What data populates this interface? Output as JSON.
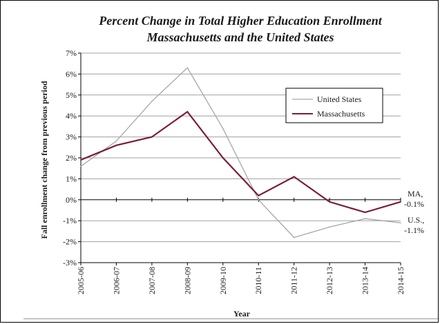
{
  "chart_data": {
    "type": "line",
    "title": "Percent Change in Total Higher Education Enrollment",
    "subtitle": "Massachusetts and the United States",
    "xlabel": "Year",
    "ylabel": "Fall enrollment change from previous period",
    "categories": [
      "2005-06",
      "2006-07",
      "2007-08",
      "2008-09",
      "2009-10",
      "2010-11",
      "2011-12",
      "2012-13",
      "2013-14",
      "2014-15"
    ],
    "ylim": [
      -3,
      7
    ],
    "yticks": [
      -3,
      -2,
      -1,
      0,
      1,
      2,
      3,
      4,
      5,
      6,
      7
    ],
    "ytick_labels": [
      "-3%",
      "-2%",
      "-1%",
      "0%",
      "1%",
      "2%",
      "3%",
      "4%",
      "5%",
      "6%",
      "7%"
    ],
    "grid": true,
    "legend_position": "upper-right",
    "series": [
      {
        "name": "United States",
        "color": "#a6a6a6",
        "values": [
          1.6,
          2.8,
          4.7,
          6.3,
          3.4,
          0.0,
          -1.8,
          -1.3,
          -0.9,
          -1.1
        ]
      },
      {
        "name": "Massachusetts",
        "color": "#7b1c34",
        "values": [
          1.9,
          2.6,
          3.0,
          4.2,
          2.0,
          0.2,
          1.1,
          -0.1,
          -0.6,
          -0.1
        ]
      }
    ],
    "annotations": [
      {
        "series": "Massachusetts",
        "lines": [
          "MA,",
          "-0.1%"
        ]
      },
      {
        "series": "United States",
        "lines": [
          "U.S.,",
          "-1.1%"
        ]
      }
    ]
  }
}
